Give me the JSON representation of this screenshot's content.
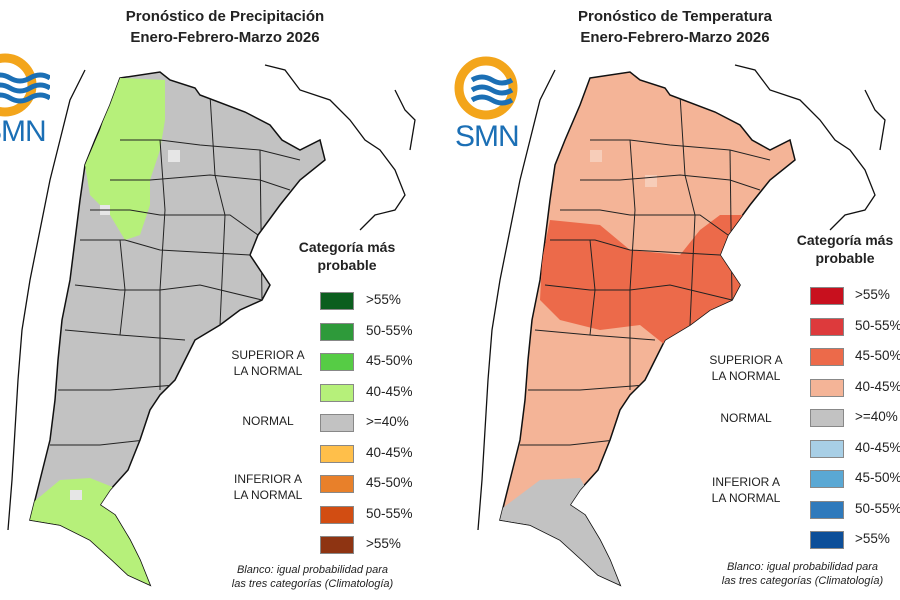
{
  "maps": [
    {
      "id": "precip",
      "title_line1": "Pronóstico de Precipitación",
      "title_line2": "Enero-Febrero-Marzo 2026",
      "logo_text": "SMN",
      "legend_title_line1": "Categoría más",
      "legend_title_line2": "probable",
      "group_superior_line1": "SUPERIOR A",
      "group_superior_line2": "LA NORMAL",
      "group_normal": "NORMAL",
      "group_inferior_line1": "INFERIOR A",
      "group_inferior_line2": "LA NORMAL",
      "legend": [
        {
          "label": ">55%",
          "color": "#0b5e1e"
        },
        {
          "label": "50-55%",
          "color": "#2e9a3a"
        },
        {
          "label": "45-50%",
          "color": "#56cc45"
        },
        {
          "label": "40-45%",
          "color": "#b6f07a"
        },
        {
          "label": ">=40%",
          "color": "#c2c2c2"
        },
        {
          "label": "40-45%",
          "color": "#ffbf4a"
        },
        {
          "label": "45-50%",
          "color": "#e8802a"
        },
        {
          "label": "50-55%",
          "color": "#d24d12"
        },
        {
          "label": ">55%",
          "color": "#8e3412"
        }
      ],
      "note_line1": "Blanco: igual probabilidad para",
      "note_line2": "las tres categorías (Climatología)",
      "dominant_color": "#c2c2c2",
      "north_color": "#b6f07a",
      "south_color": "#b6f07a"
    },
    {
      "id": "temp",
      "title_line1": "Pronóstico de Temperatura",
      "title_line2": "Enero-Febrero-Marzo 2026",
      "logo_text": "SMN",
      "legend_title_line1": "Categoría más",
      "legend_title_line2": "probable",
      "group_superior_line1": "SUPERIOR A",
      "group_superior_line2": "LA NORMAL",
      "group_normal": "NORMAL",
      "group_inferior_line1": "INFERIOR A",
      "group_inferior_line2": "LA NORMAL",
      "legend": [
        {
          "label": ">55%",
          "color": "#c8101e"
        },
        {
          "label": "50-55%",
          "color": "#dd3a3c"
        },
        {
          "label": "45-50%",
          "color": "#ec6a4a"
        },
        {
          "label": "40-45%",
          "color": "#f4b497"
        },
        {
          "label": ">=40%",
          "color": "#c2c2c2"
        },
        {
          "label": "40-45%",
          "color": "#a8cfe6"
        },
        {
          "label": "45-50%",
          "color": "#5aa8d4"
        },
        {
          "label": "50-55%",
          "color": "#2f7abc"
        },
        {
          "label": ">55%",
          "color": "#0d4f99"
        }
      ],
      "note_line1": "Blanco: igual probabilidad para",
      "note_line2": "las tres categorías (Climatología)",
      "dominant_color": "#f4b497",
      "central_color": "#ec6a4a",
      "south_color": "#c2c2c2"
    }
  ]
}
